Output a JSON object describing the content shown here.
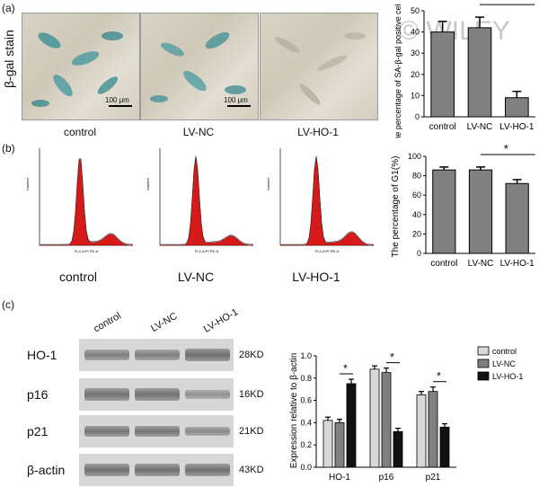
{
  "panel_labels": {
    "a": "(a)",
    "b": "(b)",
    "c": "(c)"
  },
  "panel_a": {
    "row_label": "β-gal stain",
    "conditions": [
      "control",
      "LV-NC",
      "LV-HO-1"
    ],
    "scale_bar": "100 μm",
    "chart": {
      "ylabel": "The percentage of SA-β-gal positive cells",
      "watermark": "© WILEY",
      "sig": "*",
      "ticks": [
        "0",
        "10",
        "20",
        "30",
        "40",
        "50"
      ],
      "chart_data": {
        "type": "bar",
        "categories": [
          "control",
          "LV-NC",
          "LV-HO-1"
        ],
        "values": [
          40,
          42,
          9
        ],
        "errors": [
          5,
          5,
          3
        ],
        "ylim": [
          0,
          50
        ],
        "color": "#808080"
      }
    }
  },
  "panel_b": {
    "conditions": [
      "control",
      "LV-NC",
      "LV-HO-1"
    ],
    "flow_xlabel": "FL2-A:PI PE-A",
    "flow_ylabel": "Number",
    "chart": {
      "ylabel": "The percentage of G1(%)",
      "sig": "*",
      "ticks": [
        "0",
        "20",
        "40",
        "60",
        "80",
        "100"
      ],
      "chart_data": {
        "type": "bar",
        "categories": [
          "control",
          "LV-NC",
          "LV-HO-1"
        ],
        "values": [
          86,
          86,
          72
        ],
        "errors": [
          3,
          3,
          4
        ],
        "ylim": [
          0,
          100
        ],
        "color": "#808080"
      }
    }
  },
  "panel_c": {
    "lanes": [
      "control",
      "LV-NC",
      "LV-HO-1"
    ],
    "proteins": [
      "HO-1",
      "p16",
      "p21",
      "β-actin"
    ],
    "sizes": [
      "28KD",
      "16KD",
      "21KD",
      "43KD"
    ],
    "band_intensity": [
      [
        0.7,
        0.7,
        0.95
      ],
      [
        0.9,
        0.9,
        0.45
      ],
      [
        0.85,
        0.85,
        0.55
      ],
      [
        0.9,
        0.9,
        0.9
      ]
    ],
    "chart": {
      "ylabel": "Expression relative to β-actin",
      "ticks": [
        "0.0",
        "0.2",
        "0.4",
        "0.6",
        "0.8",
        "1.0"
      ],
      "sig": "*",
      "chart_data": {
        "type": "bar",
        "categories": [
          "HO-1",
          "p16",
          "p21"
        ],
        "ylim": [
          0,
          1.0
        ],
        "series": [
          {
            "name": "control",
            "values": [
              0.42,
              0.88,
              0.65
            ],
            "errors": [
              0.03,
              0.03,
              0.03
            ],
            "color": "#d8d8d8"
          },
          {
            "name": "LV-NC",
            "values": [
              0.4,
              0.85,
              0.68
            ],
            "errors": [
              0.03,
              0.04,
              0.04
            ],
            "color": "#808080"
          },
          {
            "name": "LV-HO-1",
            "values": [
              0.75,
              0.32,
              0.36
            ],
            "errors": [
              0.04,
              0.03,
              0.03
            ],
            "color": "#111111"
          }
        ]
      }
    }
  }
}
